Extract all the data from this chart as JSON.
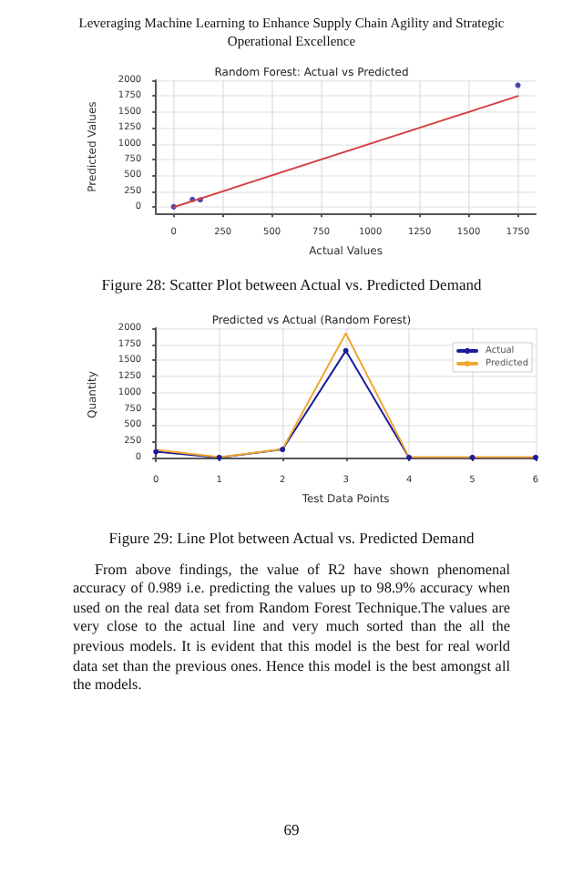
{
  "chart_data": [
    {
      "type": "scatter",
      "title": "Random Forest: Actual vs Predicted",
      "xlabel": "Actual Values",
      "ylabel": "Predicted Values",
      "xlim": [
        -90,
        1840
      ],
      "ylim": [
        -100,
        2000
      ],
      "xticks": [
        0,
        250,
        500,
        750,
        1000,
        1250,
        1500,
        1750
      ],
      "yticks": [
        0,
        250,
        500,
        750,
        1000,
        1250,
        1500,
        1750,
        2000
      ],
      "grid": true,
      "marker": "circle",
      "annotations": [
        "Leveraging Machine Learning to Enhance Supply Chain Agility and Strategic Operational Excellence",
        "Figure 28: Scatter Plot between Actual vs. Predicted Demand"
      ],
      "series": [
        {
          "color": "#1c1c9c",
          "x": [
            0,
            95,
            135,
            1750
          ],
          "values": [
            5,
            120,
            115,
            1920
          ]
        },
        {
          "type": "line",
          "color": "#d44040",
          "marker": "none",
          "x": [
            0,
            1750
          ],
          "values": [
            0,
            1750
          ]
        }
      ]
    },
    {
      "type": "line",
      "title": "Predicted vs Actual (Random Forest)",
      "xlabel": "Test Data Points",
      "ylabel": "Quantity",
      "categories": [
        "0",
        "1",
        "2",
        "3",
        "4",
        "5",
        "6"
      ],
      "ylim": [
        -60,
        2000
      ],
      "yticks": [
        0,
        250,
        500,
        750,
        1000,
        1250,
        1500,
        1750,
        2000
      ],
      "grid": true,
      "legend": "top right",
      "annotations": [
        "Figure 29: Line Plot between Actual vs. Predicted Demand",
        "From above findings, the value of R2 have shown phenomenal accuracy of 0.989 i.e. predicting the values up to 98.9% accuracy when used on the real data set from Random Forest Technique.The values are very close to the actual line and very much sorted than the all the previous models. It is evident that this model is the best for real world data set than the previous ones. Hence this model is the best amongst all the models.",
        "69"
      ],
      "series": [
        {
          "name": "Actual",
          "color": "#1c1c9c",
          "marker": "circle",
          "values": [
            90,
            0,
            125,
            1650,
            0,
            0,
            0
          ]
        },
        {
          "name": "Predicted",
          "color": "#f0a830",
          "marker": "none",
          "values": [
            120,
            5,
            130,
            1920,
            5,
            5,
            5
          ]
        }
      ]
    }
  ]
}
